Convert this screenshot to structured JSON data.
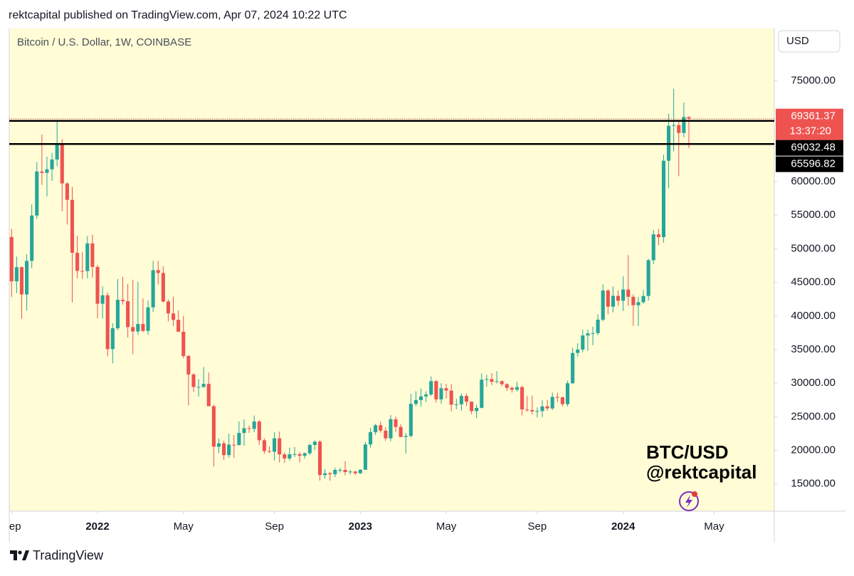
{
  "header": "rektcapital published on TradingView.com, Apr 07, 2024 10:22 UTC",
  "footer_brand": "TradingView",
  "chart_data": {
    "type": "candlestick",
    "title": "Bitcoin / U.S. Dollar, 1W, COINBASE",
    "currency": "USD",
    "categories": [
      null,
      null,
      null,
      null,
      null,
      null,
      null,
      null,
      null,
      null,
      null,
      null,
      null,
      null,
      null,
      null,
      null,
      null,
      null,
      null,
      null,
      null,
      null,
      null,
      null,
      null,
      null,
      null,
      null,
      null,
      null,
      null,
      null,
      null,
      null,
      null,
      null,
      null,
      null,
      null,
      null,
      null,
      null,
      null,
      null,
      null,
      null,
      null,
      null,
      null,
      null,
      null,
      null,
      null,
      null,
      null,
      null,
      null,
      null,
      null,
      null,
      null,
      null,
      null,
      null,
      null,
      null,
      null,
      null,
      null,
      null,
      null,
      null,
      null,
      null,
      null,
      null,
      null,
      null,
      null,
      null,
      null,
      null,
      null,
      null,
      null,
      null,
      null,
      null,
      null,
      null,
      null,
      null,
      null,
      null,
      null,
      null,
      null,
      null,
      null,
      null,
      null,
      null,
      null,
      null,
      null,
      null,
      null,
      null,
      null,
      null,
      null,
      null,
      null,
      null,
      null,
      null,
      null,
      null,
      null,
      null,
      null,
      null,
      null,
      null,
      null,
      null,
      null,
      null,
      null,
      null,
      null,
      null,
      null,
      null
    ],
    "open": [
      51750,
      45160,
      47260,
      43200,
      48200,
      54950,
      61500,
      61300,
      61830,
      63280,
      65520,
      59720,
      57280,
      49400,
      46700,
      46680,
      50800,
      47300,
      41820,
      43080,
      35070,
      38170,
      42400,
      42200,
      38350,
      37700,
      38800,
      37780,
      41280,
      46820,
      46400,
      42150,
      40380,
      39420,
      37650,
      34050,
      31300,
      29440,
      29450,
      29900,
      26570,
      20550,
      21050,
      19300,
      20850,
      20800,
      22600,
      23300,
      23200,
      24300,
      21500,
      19900,
      19800,
      21800,
      19400,
      18800,
      19420,
      19440,
      19200,
      19570,
      20810,
      21300,
      16330,
      16600,
      16450,
      17100,
      17100,
      16770,
      16850,
      16600,
      17120,
      20880,
      22700,
      23740,
      22940,
      21790,
      24630,
      23490,
      22000,
      22150,
      26920,
      27480,
      28030,
      28320,
      30300,
      27600,
      29250,
      28900,
      26800,
      26850,
      28100,
      27250,
      25850,
      26330,
      30520,
      30600,
      30200,
      30300,
      29850,
      29300,
      29030,
      29420,
      26100,
      26000,
      25800,
      25850,
      26550,
      26250,
      27950,
      27900,
      26880,
      29990,
      34500,
      35000,
      37100,
      37400,
      37450,
      39450,
      43780,
      41380,
      42990,
      42270,
      43940,
      42850,
      41600,
      42050,
      42980,
      48300,
      52150,
      51730,
      63100,
      68300,
      68400,
      67230,
      69600
    ],
    "high": [
      52950,
      48850,
      47350,
      49200,
      56600,
      62900,
      67000,
      63700,
      64250,
      69000,
      66300,
      59900,
      59200,
      51950,
      49500,
      51900,
      52100,
      47600,
      44400,
      43500,
      38900,
      45500,
      45850,
      44800,
      45400,
      45100,
      42600,
      42300,
      48200,
      48200,
      47400,
      42450,
      42900,
      40800,
      40000,
      34200,
      31500,
      30600,
      32400,
      31600,
      26800,
      21800,
      21450,
      22500,
      22300,
      24300,
      24600,
      23700,
      25200,
      24500,
      21800,
      20600,
      22700,
      22800,
      19700,
      20400,
      20500,
      19750,
      19700,
      21000,
      21480,
      21500,
      17200,
      16800,
      17400,
      17400,
      18400,
      17100,
      16950,
      17200,
      21250,
      23350,
      23950,
      24250,
      23450,
      25250,
      25050,
      23900,
      22600,
      28400,
      28800,
      29200,
      28800,
      31000,
      30450,
      30000,
      29900,
      29850,
      27700,
      28450,
      28450,
      27150,
      26800,
      31450,
      31250,
      31500,
      31800,
      30400,
      30000,
      29500,
      30200,
      29650,
      28100,
      28150,
      26400,
      27450,
      27500,
      28600,
      28600,
      28000,
      30350,
      35250,
      35950,
      37950,
      37950,
      38400,
      40250,
      44700,
      44000,
      44400,
      43800,
      45900,
      49050,
      43200,
      42850,
      43850,
      48500,
      52800,
      52950,
      64000,
      70100,
      73800,
      68900,
      71750,
      69700
    ],
    "low": [
      42850,
      43400,
      39600,
      40800,
      47100,
      54450,
      59500,
      57800,
      60100,
      62300,
      55600,
      53600,
      42000,
      45600,
      45500,
      45600,
      45700,
      39650,
      39600,
      34000,
      32950,
      37900,
      41700,
      36800,
      34300,
      37200,
      37600,
      37200,
      40600,
      44700,
      42000,
      39200,
      38500,
      37700,
      33700,
      26700,
      28700,
      28000,
      29300,
      26600,
      17600,
      19600,
      18600,
      18900,
      18900,
      20700,
      20700,
      22600,
      22700,
      20800,
      19500,
      19600,
      18500,
      18200,
      18150,
      18500,
      19000,
      18200,
      18800,
      19300,
      20050,
      15500,
      15800,
      15500,
      16000,
      16700,
      16300,
      16400,
      16300,
      16500,
      17100,
      20400,
      22300,
      22600,
      21400,
      21350,
      22750,
      21950,
      19550,
      21900,
      26600,
      26550,
      27200,
      28100,
      27100,
      26950,
      27700,
      25800,
      26100,
      25900,
      26600,
      25400,
      24800,
      26250,
      29500,
      29700,
      29950,
      29550,
      28850,
      28600,
      28750,
      25200,
      25750,
      25350,
      24900,
      24950,
      25900,
      26000,
      27200,
      26550,
      26550,
      29900,
      33950,
      34600,
      34800,
      35650,
      37150,
      39200,
      40250,
      40550,
      41500,
      40750,
      41500,
      38550,
      38500,
      41800,
      42300,
      47700,
      50550,
      50900,
      59000,
      64500,
      60800,
      66600,
      65000
    ],
    "close": [
      45160,
      47260,
      43200,
      48200,
      54950,
      61500,
      61300,
      61830,
      63280,
      65520,
      59720,
      57280,
      49400,
      46700,
      46680,
      50800,
      47300,
      41820,
      43080,
      35070,
      38170,
      42400,
      42200,
      38350,
      37700,
      38800,
      37780,
      41280,
      46820,
      46400,
      42150,
      40380,
      39420,
      37650,
      34050,
      31300,
      29440,
      29450,
      29900,
      26570,
      20550,
      21050,
      19300,
      20850,
      20800,
      22600,
      23300,
      23200,
      24300,
      21500,
      19900,
      19800,
      21800,
      19400,
      18800,
      19420,
      19440,
      19200,
      19570,
      20810,
      21300,
      16330,
      16600,
      16450,
      17100,
      17100,
      16770,
      16850,
      16600,
      17120,
      20880,
      22700,
      23740,
      22940,
      21790,
      24630,
      23490,
      22000,
      22150,
      26920,
      27480,
      28030,
      28320,
      30300,
      27600,
      29250,
      28900,
      26800,
      26850,
      28100,
      27250,
      25850,
      26330,
      30520,
      30600,
      30200,
      30300,
      29850,
      29300,
      29030,
      29420,
      26100,
      26000,
      25800,
      25850,
      26550,
      26250,
      27950,
      27900,
      26880,
      29990,
      34500,
      35000,
      37100,
      37400,
      37450,
      39450,
      43780,
      41380,
      42990,
      42270,
      43940,
      42850,
      41600,
      42050,
      42980,
      48300,
      52150,
      51730,
      63100,
      68300,
      68400,
      67230,
      69600,
      69361.37
    ],
    "colors": {
      "up": "#26a69a",
      "down": "#ef5350"
    },
    "xlim": [
      -0.46,
      150.9
    ],
    "xticks": [
      {
        "value": 0,
        "label": "Sep"
      },
      {
        "value": 17,
        "label": "2022"
      },
      {
        "value": 34,
        "label": "May"
      },
      {
        "value": 52,
        "label": "Sep"
      },
      {
        "value": 69,
        "label": "2023"
      },
      {
        "value": 86,
        "label": "May"
      },
      {
        "value": 104,
        "label": "Sep"
      },
      {
        "value": 121,
        "label": "2024"
      },
      {
        "value": 139,
        "label": "May"
      }
    ],
    "ylim": [
      10950,
      82780
    ],
    "yticks": [
      {
        "value": 15000,
        "label": "15000.00"
      },
      {
        "value": 20000,
        "label": "20000.00"
      },
      {
        "value": 25000,
        "label": "25000.00"
      },
      {
        "value": 30000,
        "label": "30000.00"
      },
      {
        "value": 35000,
        "label": "35000.00"
      },
      {
        "value": 40000,
        "label": "40000.00"
      },
      {
        "value": 45000,
        "label": "45000.00"
      },
      {
        "value": 50000,
        "label": "50000.00"
      },
      {
        "value": 55000,
        "label": "55000.00"
      },
      {
        "value": 60000,
        "label": "60000.00"
      },
      {
        "value": 75000,
        "label": "75000.00"
      }
    ],
    "horizontal_lines": [
      69032.48,
      65596.82
    ],
    "last_price": 69361.37,
    "countdown": "13:37:20",
    "annotations": [
      "BTC/USD",
      "@rektcapital"
    ]
  }
}
